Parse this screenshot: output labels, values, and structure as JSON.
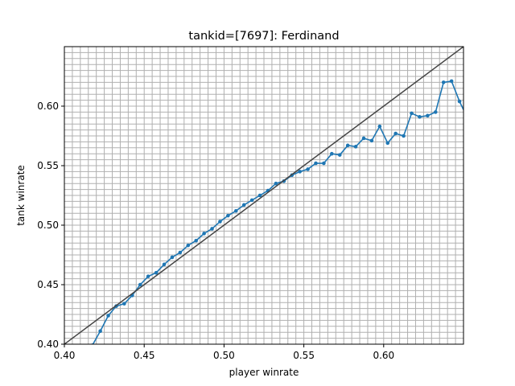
{
  "chart_data": {
    "type": "line",
    "title": "tankid=[7697]: Ferdinand",
    "xlabel": "player winrate",
    "ylabel": "tank winrate",
    "xlim": [
      0.4,
      0.65
    ],
    "ylim": [
      0.4,
      0.65
    ],
    "x_ticks": [
      0.4,
      0.45,
      0.5,
      0.55,
      0.6
    ],
    "y_ticks": [
      0.4,
      0.45,
      0.5,
      0.55,
      0.6
    ],
    "x_tick_labels": [
      "0.40",
      "0.45",
      "0.50",
      "0.55",
      "0.60"
    ],
    "y_tick_labels": [
      "0.40",
      "0.45",
      "0.50",
      "0.55",
      "0.60"
    ],
    "grid": true,
    "grid_minor_step": 0.005,
    "series": [
      {
        "color": "#1f77b4",
        "marker": "circle",
        "x": [
          0.4175,
          0.4225,
          0.4275,
          0.4325,
          0.4375,
          0.4425,
          0.4475,
          0.4525,
          0.4575,
          0.4625,
          0.4675,
          0.4725,
          0.4775,
          0.4825,
          0.4875,
          0.4925,
          0.4975,
          0.5025,
          0.5075,
          0.5125,
          0.5175,
          0.5225,
          0.5275,
          0.5325,
          0.5375,
          0.5425,
          0.5475,
          0.5525,
          0.5575,
          0.5625,
          0.5675,
          0.5725,
          0.5775,
          0.5825,
          0.5875,
          0.5925,
          0.5975,
          0.6025,
          0.6075,
          0.6125,
          0.6175,
          0.6225,
          0.6275,
          0.6325,
          0.6375,
          0.6425,
          0.6475,
          0.6525
        ],
        "y": [
          0.399,
          0.411,
          0.424,
          0.432,
          0.434,
          0.441,
          0.45,
          0.457,
          0.46,
          0.467,
          0.473,
          0.477,
          0.483,
          0.487,
          0.493,
          0.497,
          0.503,
          0.508,
          0.512,
          0.517,
          0.521,
          0.525,
          0.529,
          0.535,
          0.537,
          0.542,
          0.545,
          0.547,
          0.552,
          0.552,
          0.56,
          0.559,
          0.567,
          0.566,
          0.573,
          0.571,
          0.583,
          0.569,
          0.577,
          0.575,
          0.594,
          0.591,
          0.592,
          0.595,
          0.62,
          0.621,
          0.604,
          0.59
        ]
      },
      {
        "color": "#444444",
        "marker": "none",
        "x": [
          0.4,
          0.65
        ],
        "y": [
          0.4,
          0.65
        ]
      }
    ]
  }
}
